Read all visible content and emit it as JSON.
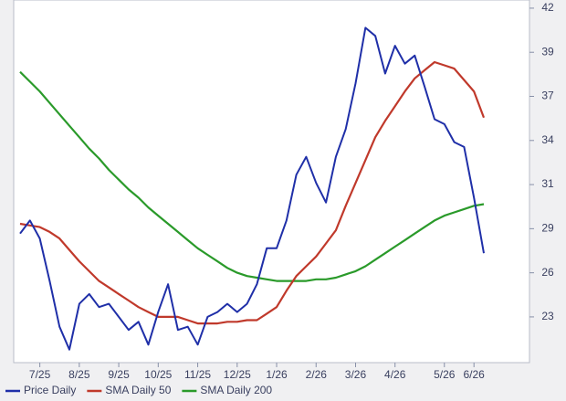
{
  "chart_data": {
    "type": "line",
    "categories": [
      null,
      null,
      "7/25",
      null,
      null,
      null,
      "8/25",
      null,
      null,
      null,
      "9/25",
      null,
      null,
      null,
      "10/25",
      null,
      null,
      null,
      "11/25",
      null,
      null,
      null,
      "12/25",
      null,
      null,
      null,
      "1/26",
      null,
      null,
      null,
      "2/26",
      null,
      null,
      null,
      "3/26",
      null,
      null,
      null,
      "4/26",
      null,
      null,
      null,
      null,
      "5/26",
      null,
      null,
      "6/26",
      null
    ],
    "series": [
      {
        "name": "Price Daily",
        "color": "#1f2fa8",
        "values": [
          28.3,
          29.1,
          28.0,
          25.4,
          22.6,
          21.2,
          24.0,
          24.6,
          23.8,
          24.0,
          23.2,
          22.4,
          22.9,
          21.5,
          23.5,
          25.2,
          22.4,
          22.6,
          21.5,
          23.2,
          23.5,
          24.0,
          23.5,
          24.0,
          25.2,
          27.4,
          27.4,
          29.1,
          31.9,
          33.0,
          31.4,
          30.2,
          33.0,
          34.7,
          37.5,
          40.9,
          40.4,
          38.1,
          39.8,
          38.7,
          39.2,
          37.3,
          35.3,
          35.0,
          33.9,
          33.6,
          30.5,
          27.1
        ]
      },
      {
        "name": "SMA Daily 50",
        "color": "#c0392b",
        "values": [
          28.9,
          28.8,
          28.7,
          28.4,
          28.0,
          27.3,
          26.6,
          26.0,
          25.4,
          25.0,
          24.6,
          24.2,
          23.8,
          23.5,
          23.2,
          23.2,
          23.2,
          23.0,
          22.8,
          22.8,
          22.8,
          22.9,
          22.9,
          23.0,
          23.0,
          23.4,
          23.8,
          24.8,
          25.7,
          26.3,
          26.9,
          27.7,
          28.5,
          30.0,
          31.4,
          32.8,
          34.2,
          35.2,
          36.1,
          37.0,
          37.8,
          38.3,
          38.8,
          38.6,
          38.4,
          37.7,
          37.0,
          35.4
        ]
      },
      {
        "name": "SMA Daily 200",
        "color": "#2a9a2a",
        "values": [
          38.2,
          37.6,
          37.0,
          36.3,
          35.6,
          34.9,
          34.2,
          33.5,
          32.9,
          32.2,
          31.6,
          31.0,
          30.5,
          29.9,
          29.4,
          28.9,
          28.4,
          27.9,
          27.4,
          27.0,
          26.6,
          26.2,
          25.9,
          25.7,
          25.6,
          25.5,
          25.4,
          25.4,
          25.4,
          25.4,
          25.5,
          25.5,
          25.6,
          25.8,
          26.0,
          26.3,
          26.7,
          27.1,
          27.5,
          27.9,
          28.3,
          28.7,
          29.1,
          29.4,
          29.6,
          29.8,
          30.0,
          30.1
        ]
      }
    ],
    "ylim": [
      20.4,
      42.6
    ],
    "yticks": [
      {
        "value": 23.2,
        "label": "23"
      },
      {
        "value": 25.9,
        "label": "26"
      },
      {
        "value": 28.6,
        "label": "29"
      },
      {
        "value": 31.3,
        "label": "31"
      },
      {
        "value": 34.0,
        "label": "34"
      },
      {
        "value": 36.7,
        "label": "37"
      },
      {
        "value": 39.4,
        "label": "39"
      },
      {
        "value": 42.1,
        "label": "42"
      }
    ],
    "grid": false
  }
}
